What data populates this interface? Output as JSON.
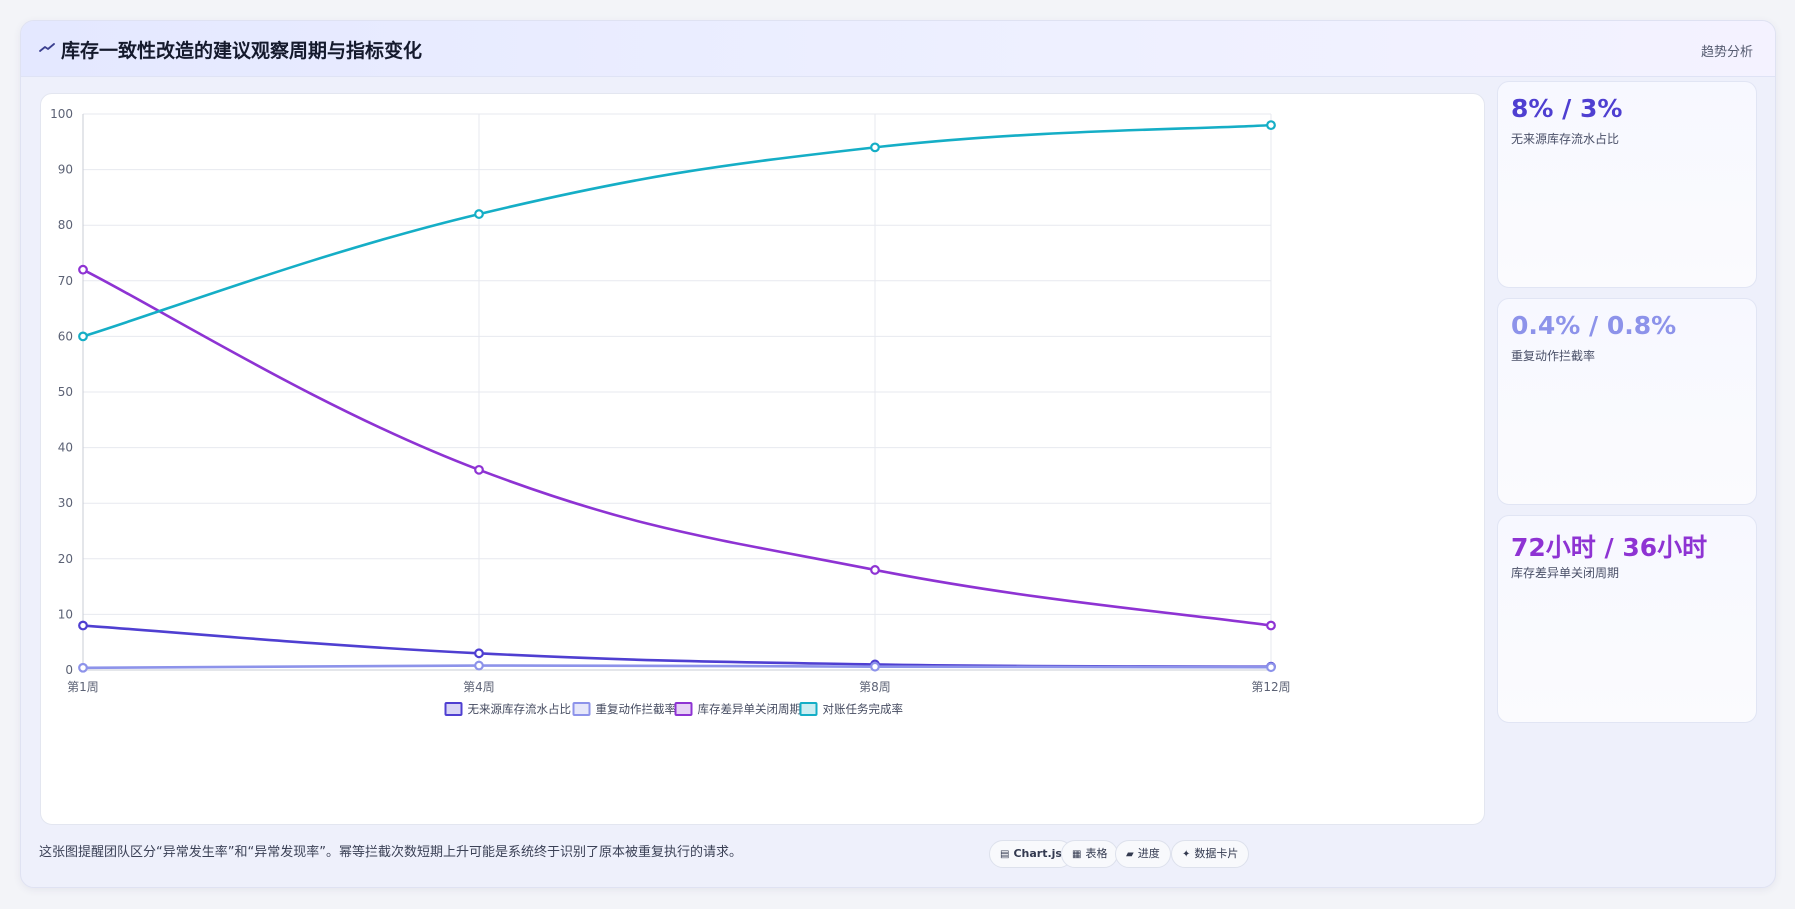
{
  "header": {
    "title": "库存一致性改造的建议观察周期与指标变化",
    "action": "趋势分析"
  },
  "colors": {
    "series1": "#4f3fd1",
    "series2": "#8d93ea",
    "series3": "#8e33d3",
    "series4": "#15aec6",
    "grid": "#e7e9ef",
    "tick": "#5c6275"
  },
  "kpis": [
    {
      "value": "8% / 3%",
      "label": "无来源库存流水占比",
      "color": "#4f3fd1"
    },
    {
      "value": "0.4% / 0.8%",
      "label": "重复动作拦截率",
      "color": "#8d93ea"
    },
    {
      "value": "72小时 / 36小时",
      "label": "库存差异单关闭周期",
      "color": "#8e33d3"
    }
  ],
  "footer": {
    "note": "这张图提醒团队区分“异常发生率”和“异常发现率”。幂等拦截次数短期上升可能是系统终于识别了原本被重复执行的请求。",
    "tags": [
      {
        "icon": "▤",
        "label": "Chart.js"
      },
      {
        "icon": "▦",
        "label": "表格"
      },
      {
        "icon": "▰",
        "label": "进度"
      },
      {
        "icon": "✦",
        "label": "数据卡片"
      }
    ]
  },
  "chart_data": {
    "type": "line",
    "categories": [
      "第1周",
      "第4周",
      "第8周",
      "第12周"
    ],
    "ylim": [
      0,
      100
    ],
    "yticks": [
      0,
      10,
      20,
      30,
      40,
      50,
      60,
      70,
      80,
      90,
      100
    ],
    "grid": true,
    "legend_position": "bottom",
    "series": [
      {
        "name": "无来源库存流水占比",
        "values": [
          8,
          3,
          1,
          0.6
        ],
        "color": "#4f3fd1"
      },
      {
        "name": "重复动作拦截率",
        "values": [
          0.4,
          0.8,
          0.6,
          0.5
        ],
        "color": "#8d93ea"
      },
      {
        "name": "库存差异单关闭周期",
        "values": [
          72,
          36,
          18,
          8
        ],
        "color": "#8e33d3"
      },
      {
        "name": "对账任务完成率",
        "values": [
          60,
          82,
          94,
          98
        ],
        "color": "#15aec6"
      }
    ]
  }
}
